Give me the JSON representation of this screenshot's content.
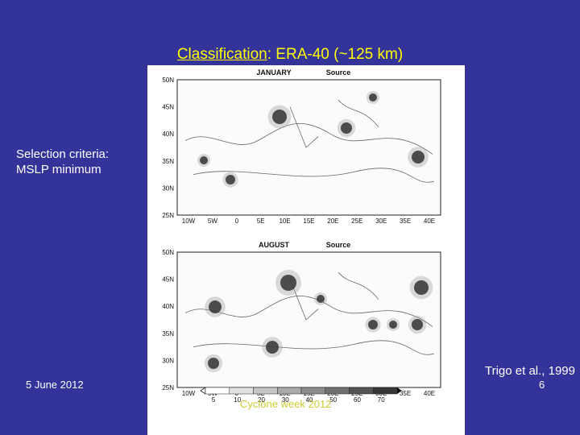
{
  "slide": {
    "title_bold": "Classification",
    "title_rest": ": ERA-40 (~125 km)",
    "criteria_line1": "Selection criteria:",
    "criteria_line2": "MSLP minimum",
    "credit": "Trigo et al., 1999",
    "footer_date": "5 June 2012",
    "footer_event": "Cyclone week 2012",
    "page_number": "6"
  },
  "figure": {
    "maps": [
      {
        "month": "JANUARY",
        "field": "Source"
      },
      {
        "month": "AUGUST",
        "field": "Source"
      }
    ],
    "lat_labels": [
      "50N",
      "45N",
      "40N",
      "35N",
      "30N",
      "25N"
    ],
    "lon_labels": [
      "10W",
      "5W",
      "0",
      "5E",
      "10E",
      "15E",
      "20E",
      "25E",
      "30E",
      "35E",
      "40E"
    ],
    "colorbar_ticks": [
      "5",
      "10",
      "20",
      "30",
      "40",
      "50",
      "60",
      "70"
    ]
  }
}
